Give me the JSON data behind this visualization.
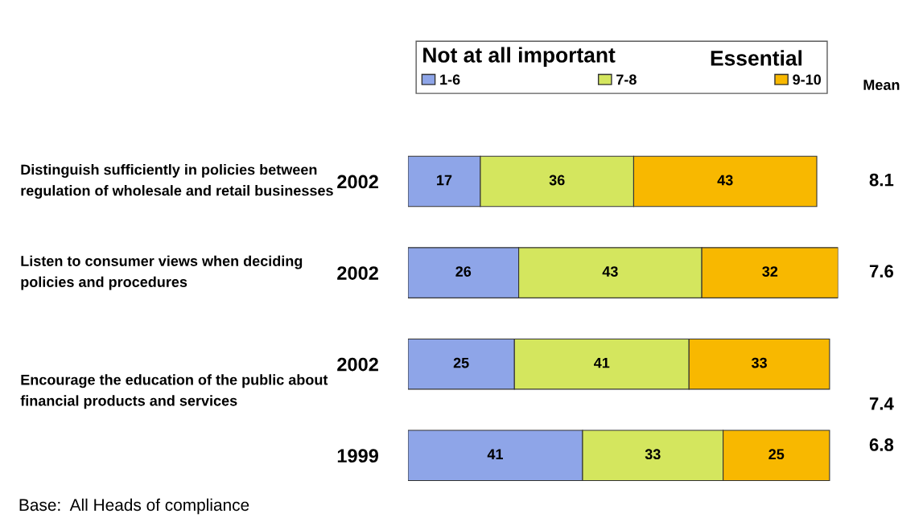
{
  "chart_data": {
    "type": "bar",
    "orientation": "horizontal",
    "stacked": true,
    "data_labels": true,
    "legend": "top right",
    "grid": false,
    "legend_title": "Not at all important",
    "categories": [
      "2002",
      "2002",
      "2002",
      "1999"
    ],
    "series": [
      {
        "name": "1-6",
        "color": "#8ea5e8",
        "values": [
          17,
          26,
          25,
          41
        ]
      },
      {
        "name": "7-8",
        "color": "#d4e65e",
        "values": [
          36,
          43,
          41,
          33
        ]
      },
      {
        "name": "9-10",
        "color": "#f8b800",
        "values": [
          43,
          32,
          33,
          25
        ]
      }
    ],
    "annotations": [
      "Distinguish sufficiently in policies between regulation of wholesale and retail businesses",
      "Listen to consumer views when deciding policies and procedures",
      "Encourage the education of the public about financial products and services",
      "Mean",
      "8.1",
      "7.6",
      "7.4",
      "6.8",
      "Base:  All Heads of compliance",
      "Essential"
    ]
  }
}
